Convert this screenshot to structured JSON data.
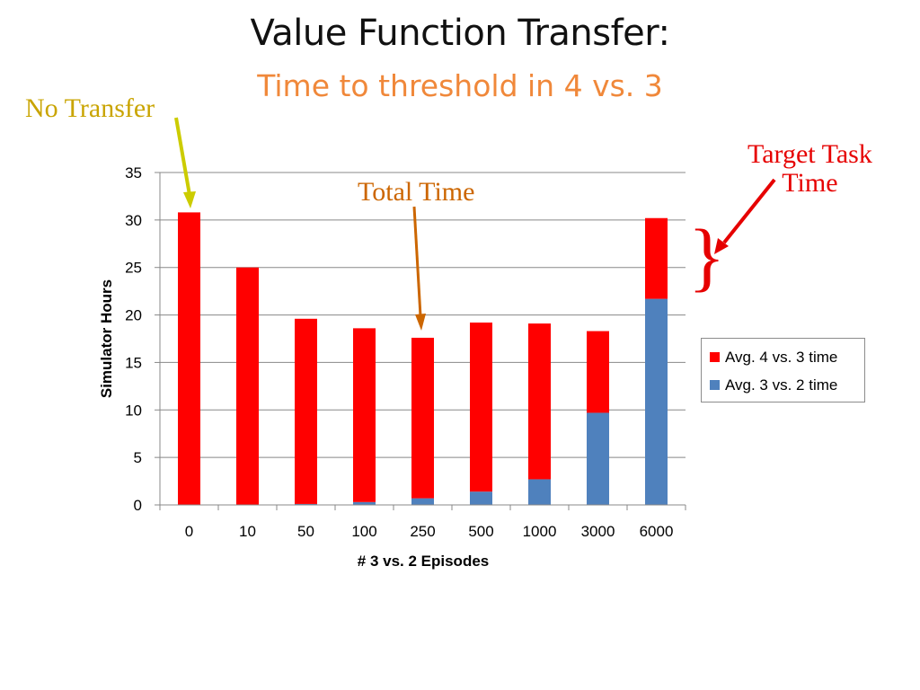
{
  "slide": {
    "title": "Value Function Transfer:",
    "subtitle": "Time to threshold in 4 vs. 3"
  },
  "annotations": {
    "no_transfer": "No Transfer",
    "total_time": "Total Time",
    "target_task_line1": "Target Task",
    "target_task_line2": "Time",
    "brace": "}"
  },
  "colors": {
    "target_series": "#ff0000",
    "source_series": "#4f81bd",
    "no_transfer_arrow": "#cccc00",
    "total_time_arrow": "#cc6600",
    "target_task_arrow": "#e60000"
  },
  "chart_data": {
    "type": "bar",
    "stacked": true,
    "categories": [
      "0",
      "10",
      "50",
      "100",
      "250",
      "500",
      "1000",
      "3000",
      "6000"
    ],
    "series": [
      {
        "name": "Avg. 3 vs. 2 time",
        "color": "#4f81bd",
        "values": [
          0,
          0,
          0.1,
          0.3,
          0.7,
          1.4,
          2.7,
          9.7,
          21.7
        ]
      },
      {
        "name": "Avg. 4 vs. 3 time",
        "color": "#ff0000",
        "values": [
          30.8,
          25.0,
          19.5,
          18.3,
          16.9,
          17.8,
          16.4,
          8.6,
          8.5
        ]
      }
    ],
    "legend_order": [
      "Avg. 4 vs. 3 time",
      "Avg. 3 vs. 2 time"
    ],
    "legend_position": "right",
    "xlabel": "# 3 vs. 2 Episodes",
    "ylabel": "Simulator Hours",
    "ylim": [
      0,
      35
    ],
    "yticks": [
      0,
      5,
      10,
      15,
      20,
      25,
      30,
      35
    ],
    "grid": true
  }
}
